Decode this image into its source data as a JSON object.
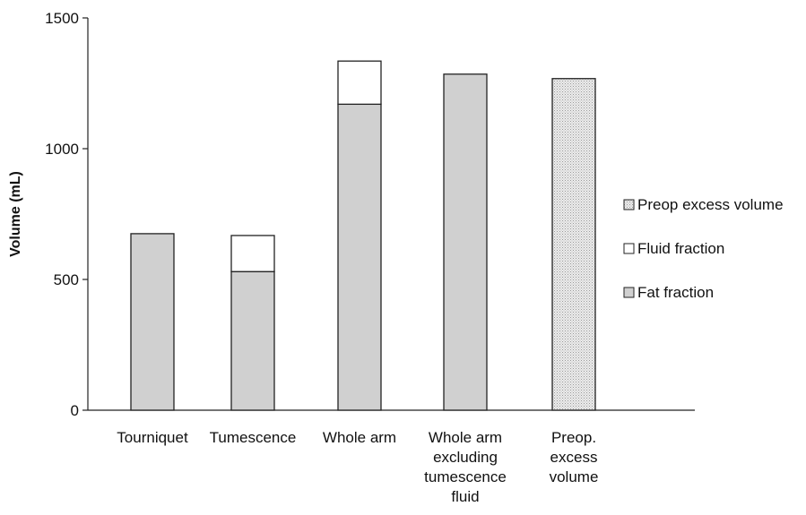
{
  "chart_data": {
    "type": "bar",
    "stacked": true,
    "ylabel": "Volume (mL)",
    "xlabel": "",
    "ylim": [
      0,
      1500
    ],
    "yticks": [
      0,
      500,
      1000,
      1500
    ],
    "grid": false,
    "legend_position": "right",
    "categories": [
      [
        "Tourniquet"
      ],
      [
        "Tumescence"
      ],
      [
        "Whole arm"
      ],
      [
        "Whole arm",
        "excluding",
        "tumescence",
        "fluid"
      ],
      [
        "Preop.",
        "excess",
        "volume"
      ]
    ],
    "series": [
      {
        "name": "Fat fraction",
        "color": "#d0d0d0",
        "pattern": "solid",
        "values": [
          675,
          530,
          1170,
          1285,
          0
        ]
      },
      {
        "name": "Fluid fraction",
        "color": "#ffffff",
        "pattern": "solid",
        "values": [
          0,
          138,
          165,
          0,
          0
        ]
      },
      {
        "name": "Preop excess volume",
        "color": "#e2e2e2",
        "pattern": "dotted",
        "values": [
          0,
          0,
          0,
          0,
          1268
        ]
      }
    ],
    "legend_order": [
      "Preop excess volume",
      "Fluid fraction",
      "Fat fraction"
    ]
  }
}
